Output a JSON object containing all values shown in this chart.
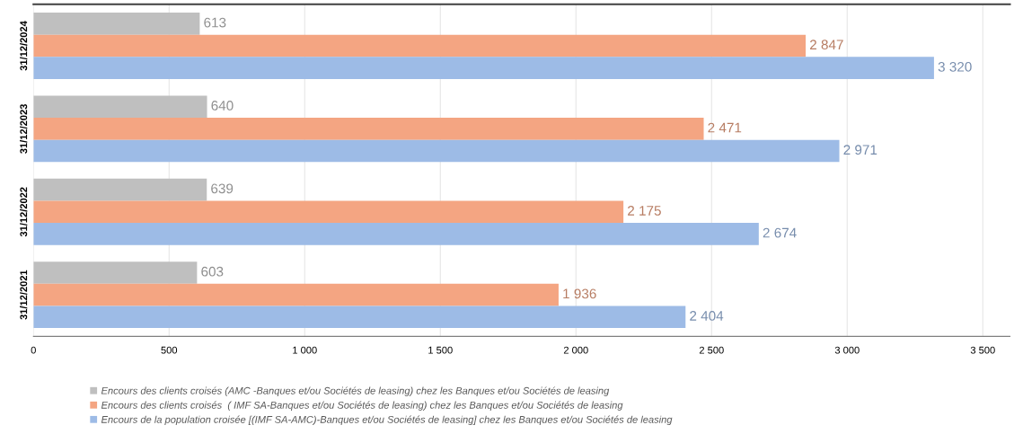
{
  "chart_data": {
    "type": "bar",
    "orientation": "horizontal",
    "categories": [
      "31/12/2024",
      "31/12/2023",
      "31/12/2022",
      "31/12/2021"
    ],
    "series": [
      {
        "name": "Encours des clients croisés (AMC -Banques et/ou Sociétés de leasing) chez les Banques et/ou Sociétés de leasing",
        "color": "#bfbfbf",
        "values": [
          613,
          640,
          639,
          603
        ],
        "value_labels": [
          "613",
          "640",
          "639",
          "603"
        ]
      },
      {
        "name": "Encours des clients croisés  ( IMF SA-Banques et/ou Sociétés de leasing) chez les Banques et/ou Sociétés de leasing",
        "color": "#f4a582",
        "values": [
          2847,
          2471,
          2175,
          1936
        ],
        "value_labels": [
          "2 847",
          "2 471",
          "2 175",
          "1 936"
        ]
      },
      {
        "name": "Encours de la population croisée [(IMF SA-AMC)-Banques et/ou Sociétés de leasing] chez les Banques et/ou Sociétés de leasing",
        "color": "#9dbbe6",
        "values": [
          3320,
          2971,
          2674,
          2404
        ],
        "value_labels": [
          "3 320",
          "2 971",
          "2 674",
          "2 404"
        ]
      }
    ],
    "xlim": [
      0,
      3600
    ],
    "xticks": [
      0,
      500,
      {
        "value": 1000,
        "label": "1 000"
      },
      {
        "value": 1500,
        "label": "1 500"
      },
      {
        "value": 2000,
        "label": "2 000"
      },
      {
        "value": 2500,
        "label": "2 500"
      },
      {
        "value": 3000,
        "label": "3 000"
      },
      {
        "value": 3500,
        "label": "3 500"
      }
    ],
    "grid": "x",
    "legend": "bottom"
  }
}
